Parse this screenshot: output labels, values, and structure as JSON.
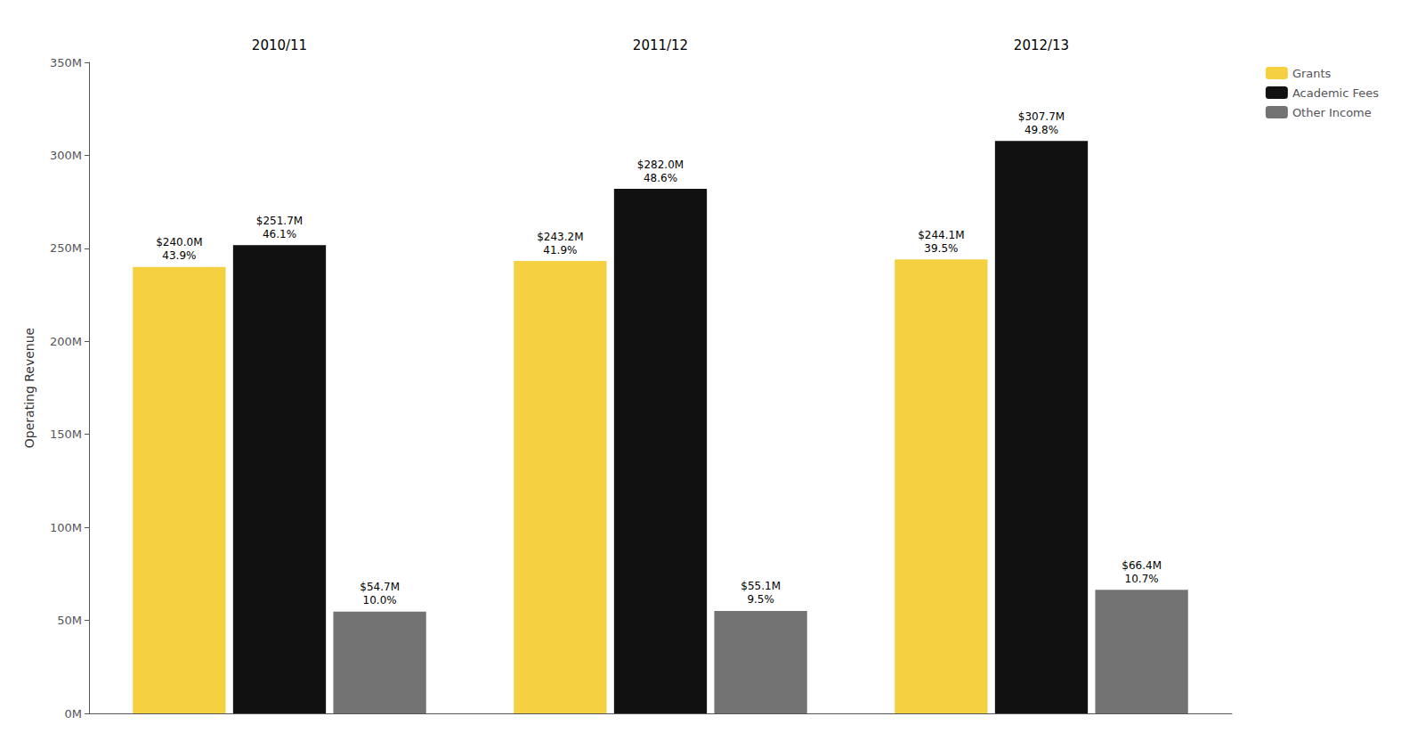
{
  "chart_data": {
    "type": "bar",
    "categories": [
      "2010/11",
      "2011/12",
      "2012/13"
    ],
    "series": [
      {
        "name": "Grants",
        "color": "#F5D040",
        "values": [
          240.0,
          243.2,
          244.1
        ],
        "value_labels": [
          "$240.0M",
          "$243.2M",
          "$244.1M"
        ],
        "percentage_labels": [
          "43.9%",
          "41.9%",
          "39.5%"
        ]
      },
      {
        "name": "Academic Fees",
        "color": "#111111",
        "values": [
          251.7,
          282.0,
          307.7
        ],
        "value_labels": [
          "$251.7M",
          "$282.0M",
          "$307.7M"
        ],
        "percentage_labels": [
          "46.1%",
          "48.6%",
          "49.8%"
        ]
      },
      {
        "name": "Other Income",
        "color": "#737373",
        "values": [
          54.7,
          55.1,
          66.4
        ],
        "value_labels": [
          "$54.7M",
          "$55.1M",
          "$66.4M"
        ],
        "percentage_labels": [
          "10.0%",
          "9.5%",
          "10.7%"
        ]
      }
    ],
    "ylabel": "Operating Revenue",
    "ylim": [
      0,
      350
    ],
    "yticks": [
      {
        "value": 0,
        "label": "0M"
      },
      {
        "value": 50,
        "label": "50M"
      },
      {
        "value": 100,
        "label": "100M"
      },
      {
        "value": 150,
        "label": "150M"
      },
      {
        "value": 200,
        "label": "200M"
      },
      {
        "value": 250,
        "label": "250M"
      },
      {
        "value": 300,
        "label": "300M"
      },
      {
        "value": 350,
        "label": "350M"
      }
    ],
    "grid": false,
    "legend": "upper right",
    "data_labels": true
  }
}
